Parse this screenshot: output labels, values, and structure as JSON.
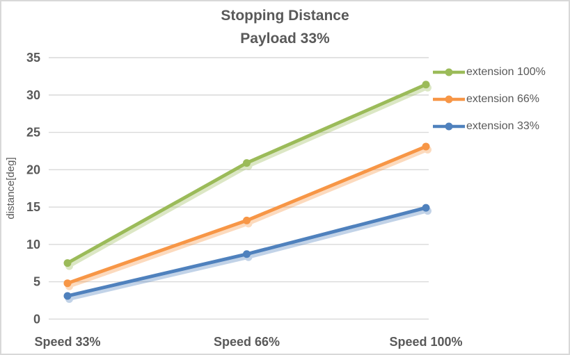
{
  "chart_data": {
    "type": "line",
    "title": "Stopping Distance",
    "subtitle": "Payload 33%",
    "ylabel": "distance[deg]",
    "xlabel": "",
    "categories": [
      "Speed 33%",
      "Speed 66%",
      "Speed 100%"
    ],
    "series": [
      {
        "name": "extension 100%",
        "color": "#9bbb59",
        "values": [
          7.5,
          20.9,
          31.4
        ]
      },
      {
        "name": "extension 66%",
        "color": "#f79646",
        "values": [
          4.8,
          13.2,
          23.1
        ]
      },
      {
        "name": "extension 33%",
        "color": "#4f81bd",
        "values": [
          3.1,
          8.7,
          14.9
        ]
      }
    ],
    "ylim": [
      0,
      35
    ],
    "ytick_step": 5,
    "grid": true,
    "legend_position": "right",
    "marker": "circle"
  },
  "style": {
    "text_color": "#595959",
    "grid_color": "#d9d9d9",
    "frame_border_color": "#d8d8d8",
    "background": "#ffffff"
  }
}
